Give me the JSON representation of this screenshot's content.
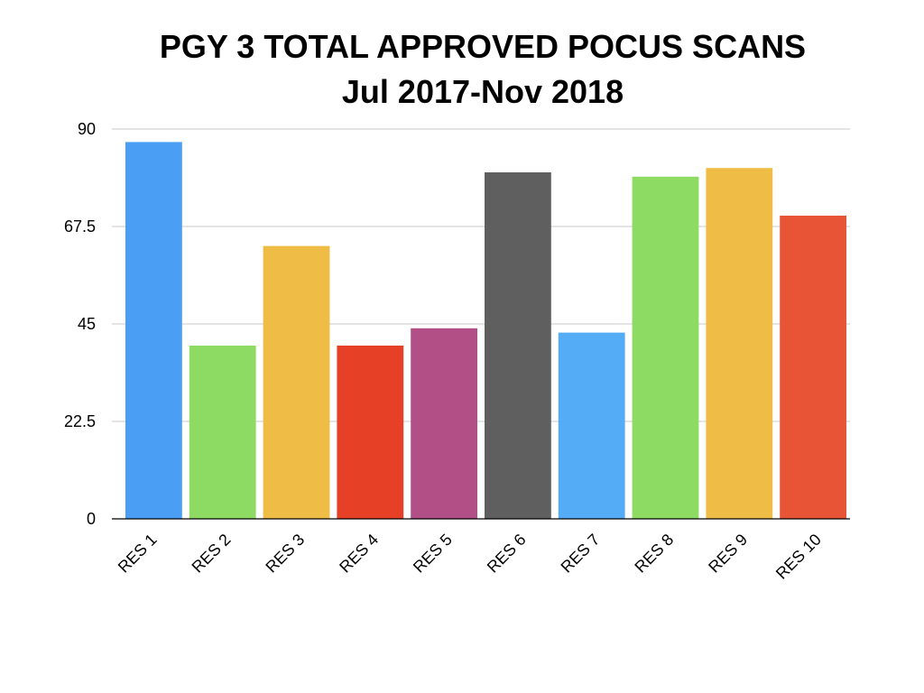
{
  "chart_data": {
    "type": "bar",
    "title": "PGY 3 TOTAL APPROVED POCUS SCANS",
    "subtitle": "Jul 2017-Nov 2018",
    "categories": [
      "RES 1",
      "RES 2",
      "RES 3",
      "RES 4",
      "RES 5",
      "RES 6",
      "RES 7",
      "RES 8",
      "RES 9",
      "RES 10"
    ],
    "values": [
      87,
      40,
      63,
      40,
      44,
      80,
      43,
      79,
      81,
      70
    ],
    "colors": [
      "#4a9ff5",
      "#8edb63",
      "#efbd45",
      "#e64027",
      "#b24f86",
      "#5f5f5f",
      "#54acf7",
      "#8edb63",
      "#efbd45",
      "#e75436"
    ],
    "ylim": [
      0,
      90
    ],
    "yticks": [
      "0",
      "22.5",
      "45",
      "67.5",
      "90"
    ],
    "grid": true,
    "xlabel": "",
    "ylabel": ""
  }
}
